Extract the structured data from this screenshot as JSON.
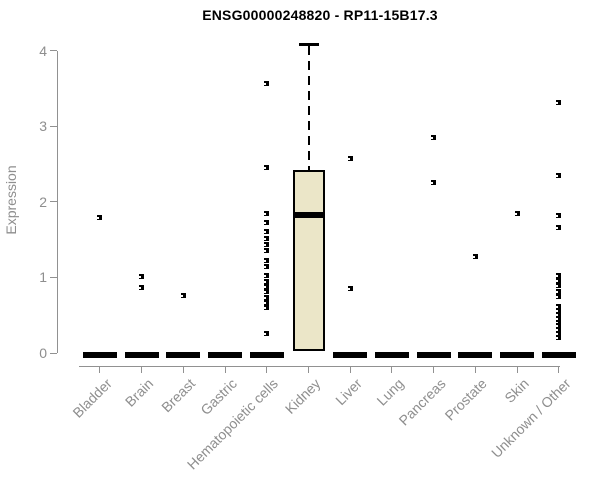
{
  "chart_data": {
    "type": "boxplot",
    "title": "ENSG00000248820 - RP11-15B17.3",
    "ylabel": "Expression",
    "xlabel": "",
    "ylim": [
      0,
      4
    ],
    "yticks": [
      0,
      1,
      2,
      3,
      4
    ],
    "grid": false,
    "legend": false,
    "x_label_rotation": 45,
    "categories": [
      {
        "label": "Bladder",
        "points": [
          1.79
        ],
        "zero_bar": true
      },
      {
        "label": "Brain",
        "points": [
          1.01,
          0.87
        ],
        "zero_bar": true
      },
      {
        "label": "Breast",
        "points": [
          0.76
        ],
        "zero_bar": true
      },
      {
        "label": "Gastric",
        "points": [],
        "zero_bar": true
      },
      {
        "label": "Hematopoietic cells",
        "points": [
          3.57,
          2.45,
          1.85,
          1.73,
          1.61,
          1.52,
          1.44,
          1.36,
          1.23,
          1.15,
          1.02,
          0.95,
          0.88,
          0.81,
          0.74,
          0.67,
          0.6,
          0.26
        ],
        "zero_bar": true
      },
      {
        "label": "Kidney",
        "points": [],
        "zero_bar": false,
        "box": {
          "q1": 0.02,
          "median": 1.82,
          "q3": 2.42,
          "whisker_high": 4.1
        }
      },
      {
        "label": "Liver",
        "points": [
          2.57,
          0.85
        ],
        "zero_bar": true
      },
      {
        "label": "Lung",
        "points": [],
        "zero_bar": true
      },
      {
        "label": "Pancreas",
        "points": [
          2.85,
          2.26
        ],
        "zero_bar": true
      },
      {
        "label": "Prostate",
        "points": [
          1.28
        ],
        "zero_bar": true
      },
      {
        "label": "Skin",
        "points": [
          1.85
        ],
        "zero_bar": true
      },
      {
        "label": "Unknown / Other",
        "points": [
          3.31,
          2.35,
          1.82,
          1.66,
          1.03,
          0.96,
          0.89,
          0.82,
          0.75,
          0.61,
          0.56,
          0.51,
          0.46,
          0.41,
          0.36,
          0.31,
          0.26,
          0.21
        ],
        "zero_bar": true
      }
    ],
    "colors": {
      "box_fill": "#EBE6C8",
      "box_border": "#000000",
      "point": "#000000",
      "zero_bar": "#000000",
      "axis": "#919191",
      "text": "#8E8E8E",
      "title": "#000000",
      "background": "#FFFFFF"
    }
  }
}
